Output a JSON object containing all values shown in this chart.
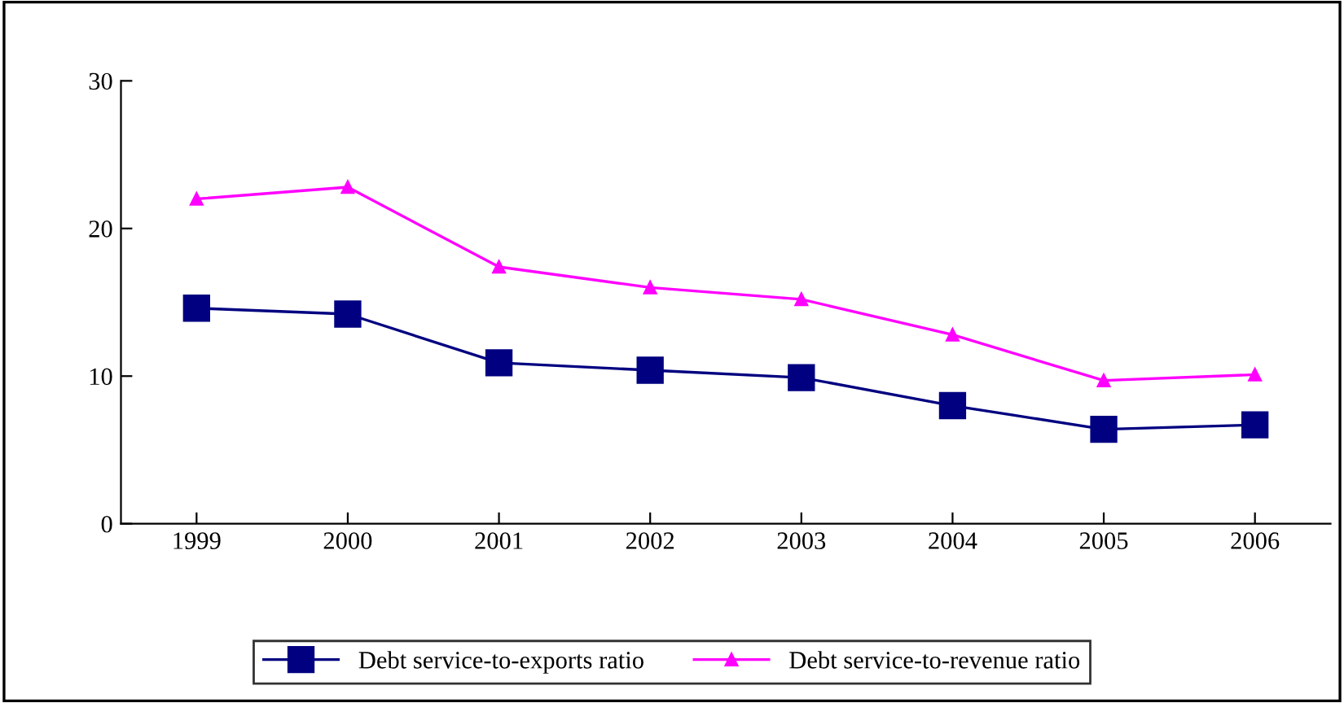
{
  "chart_data": {
    "type": "line",
    "categories": [
      "1999",
      "2000",
      "2001",
      "2002",
      "2003",
      "2004",
      "2005",
      "2006"
    ],
    "series": [
      {
        "name": "Debt service-to-exports ratio",
        "color": "#000080",
        "marker": "square",
        "values": [
          14.6,
          14.2,
          10.9,
          10.4,
          9.9,
          8.0,
          6.4,
          6.7
        ]
      },
      {
        "name": "Debt service-to-revenue ratio",
        "color": "#ff00ff",
        "marker": "triangle",
        "values": [
          22.0,
          22.8,
          17.4,
          16.0,
          15.2,
          12.8,
          9.7,
          10.1
        ]
      }
    ],
    "ylim": [
      0,
      30
    ],
    "yticks": [
      0,
      10,
      20,
      30
    ],
    "grid": false,
    "legend": "bottom",
    "line_style": "solid"
  }
}
